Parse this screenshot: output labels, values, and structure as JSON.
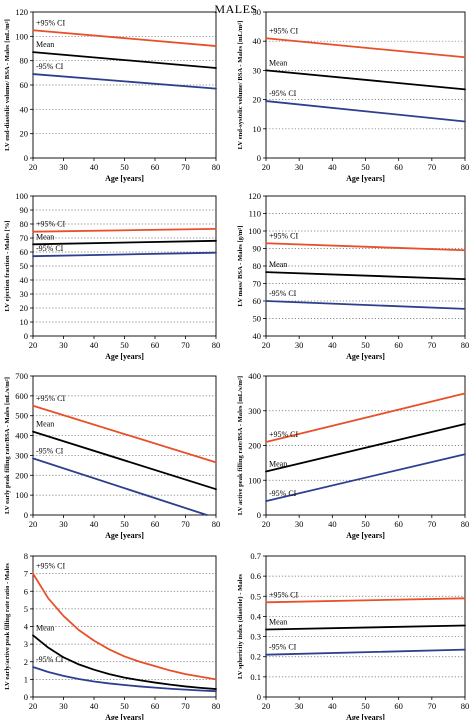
{
  "page": {
    "title": "MALES"
  },
  "colors": {
    "upper": "#e8502a",
    "mean": "#000000",
    "lower": "#2e3f8f",
    "grid": "#666666",
    "axis": "#000000"
  },
  "chart_data": [
    {
      "type": "line",
      "ylabel": "LV end-diastolic volume/ BSA - Males [mL/m²]",
      "xlabel": "Age [years]",
      "xlim": [
        20,
        80
      ],
      "xticks": [
        20,
        30,
        40,
        50,
        60,
        70,
        80
      ],
      "ylim": [
        0,
        120
      ],
      "yticks": [
        0,
        20,
        40,
        60,
        80,
        100,
        120
      ],
      "grid": "horizontal dotted",
      "series": [
        {
          "name": "+95% CI",
          "role": "upper",
          "x": [
            20,
            80
          ],
          "y": [
            105,
            92
          ]
        },
        {
          "name": "Mean",
          "role": "mean",
          "x": [
            20,
            80
          ],
          "y": [
            87,
            74
          ]
        },
        {
          "name": "-95% CI",
          "role": "lower",
          "x": [
            20,
            80
          ],
          "y": [
            69,
            57
          ]
        }
      ]
    },
    {
      "type": "line",
      "ylabel": "LV end-systolic volume/ BSA - Males [mL/m²]",
      "xlabel": "Age [years]",
      "xlim": [
        20,
        80
      ],
      "xticks": [
        20,
        30,
        40,
        50,
        60,
        70,
        80
      ],
      "ylim": [
        0,
        50
      ],
      "yticks": [
        0,
        10,
        20,
        30,
        40,
        50
      ],
      "grid": "horizontal dotted",
      "series": [
        {
          "name": "+95% CI",
          "role": "upper",
          "x": [
            20,
            80
          ],
          "y": [
            41,
            34.5
          ]
        },
        {
          "name": "Mean",
          "role": "mean",
          "x": [
            20,
            80
          ],
          "y": [
            30,
            23.5
          ]
        },
        {
          "name": "-95% CI",
          "role": "lower",
          "x": [
            20,
            80
          ],
          "y": [
            19.5,
            12.5
          ]
        }
      ]
    },
    {
      "type": "line",
      "ylabel": "LV ejection fraction - Males [%]",
      "xlabel": "Age [years]",
      "xlim": [
        20,
        80
      ],
      "xticks": [
        20,
        30,
        40,
        50,
        60,
        70,
        80
      ],
      "ylim": [
        0,
        100
      ],
      "yticks": [
        0,
        10,
        20,
        30,
        40,
        50,
        60,
        70,
        80,
        90,
        100
      ],
      "grid": "horizontal dotted",
      "series": [
        {
          "name": "+95% CI",
          "role": "upper",
          "x": [
            20,
            80
          ],
          "y": [
            74.5,
            76.5
          ]
        },
        {
          "name": "Mean",
          "role": "mean",
          "x": [
            20,
            80
          ],
          "y": [
            65.5,
            68
          ]
        },
        {
          "name": "-95% CI",
          "role": "lower",
          "x": [
            20,
            80
          ],
          "y": [
            57,
            59.5
          ]
        }
      ]
    },
    {
      "type": "line",
      "ylabel": "LV mass/ BSA - Males [g/m²]",
      "xlabel": "Age [years]",
      "xlim": [
        20,
        80
      ],
      "xticks": [
        20,
        30,
        40,
        50,
        60,
        70,
        80
      ],
      "ylim": [
        40,
        120
      ],
      "yticks": [
        40,
        50,
        60,
        70,
        80,
        90,
        100,
        110,
        120
      ],
      "grid": "horizontal dotted",
      "series": [
        {
          "name": "+95% CI",
          "role": "upper",
          "x": [
            20,
            80
          ],
          "y": [
            93,
            89
          ]
        },
        {
          "name": "Mean",
          "role": "mean",
          "x": [
            20,
            80
          ],
          "y": [
            76.5,
            72.5
          ]
        },
        {
          "name": "-95% CI",
          "role": "lower",
          "x": [
            20,
            80
          ],
          "y": [
            60,
            55.5
          ]
        }
      ]
    },
    {
      "type": "line",
      "ylabel": "LV early peak filling rate/BSA - Males [mL/s/m²]",
      "xlabel": "Age [years]",
      "xlim": [
        20,
        80
      ],
      "xticks": [
        20,
        30,
        40,
        50,
        60,
        70,
        80
      ],
      "ylim": [
        0,
        700
      ],
      "yticks": [
        0,
        100,
        200,
        300,
        400,
        500,
        600,
        700
      ],
      "grid": "horizontal dotted",
      "series": [
        {
          "name": "+95% CI",
          "role": "upper",
          "x": [
            20,
            80
          ],
          "y": [
            550,
            265
          ]
        },
        {
          "name": "Mean",
          "role": "mean",
          "x": [
            20,
            80
          ],
          "y": [
            420,
            130
          ]
        },
        {
          "name": "-95% CI",
          "role": "lower",
          "x": [
            20,
            77
          ],
          "y": [
            285,
            0
          ]
        }
      ]
    },
    {
      "type": "line",
      "ylabel": "LV active peak filling rate/BSA - Males [mL/s/m²]",
      "xlabel": "Age [years]",
      "xlim": [
        20,
        80
      ],
      "xticks": [
        20,
        30,
        40,
        50,
        60,
        70,
        80
      ],
      "ylim": [
        0,
        400
      ],
      "yticks": [
        0,
        100,
        200,
        300,
        400
      ],
      "grid": "horizontal dotted",
      "series": [
        {
          "name": "+95% CI",
          "role": "upper",
          "x": [
            20,
            80
          ],
          "y": [
            210,
            350
          ]
        },
        {
          "name": "Mean",
          "role": "mean",
          "x": [
            20,
            80
          ],
          "y": [
            125,
            262
          ]
        },
        {
          "name": "-95% CI",
          "role": "lower",
          "x": [
            20,
            80
          ],
          "y": [
            40,
            175
          ]
        }
      ]
    },
    {
      "type": "line",
      "ylabel": "LV early/active peak filling rate ratio - Males",
      "xlabel": "Age [years]",
      "xlim": [
        20,
        80
      ],
      "xticks": [
        20,
        30,
        40,
        50,
        60,
        70,
        80
      ],
      "ylim": [
        0,
        8
      ],
      "yticks": [
        0,
        1,
        2,
        3,
        4,
        5,
        6,
        7,
        8
      ],
      "grid": "horizontal dotted",
      "series": [
        {
          "name": "+95% CI",
          "role": "upper",
          "x": [
            20,
            25,
            30,
            35,
            40,
            45,
            50,
            55,
            60,
            65,
            70,
            75,
            80
          ],
          "y": [
            7.0,
            5.6,
            4.6,
            3.8,
            3.2,
            2.7,
            2.3,
            2.0,
            1.75,
            1.5,
            1.3,
            1.15,
            1.0
          ]
        },
        {
          "name": "Mean",
          "role": "mean",
          "x": [
            20,
            25,
            30,
            35,
            40,
            45,
            50,
            55,
            60,
            65,
            70,
            75,
            80
          ],
          "y": [
            3.5,
            2.8,
            2.25,
            1.85,
            1.55,
            1.3,
            1.1,
            0.95,
            0.82,
            0.7,
            0.6,
            0.52,
            0.45
          ]
        },
        {
          "name": "-95% CI",
          "role": "lower",
          "x": [
            20,
            25,
            30,
            35,
            40,
            45,
            50,
            55,
            60,
            65,
            70,
            75,
            80
          ],
          "y": [
            1.7,
            1.42,
            1.2,
            1.02,
            0.88,
            0.77,
            0.68,
            0.6,
            0.53,
            0.47,
            0.42,
            0.37,
            0.33
          ]
        }
      ]
    },
    {
      "type": "line",
      "ylabel": "LV sphericity index (diastole) - Males",
      "xlabel": "Age [years]",
      "xlim": [
        20,
        80
      ],
      "xticks": [
        20,
        30,
        40,
        50,
        60,
        70,
        80
      ],
      "ylim": [
        0,
        0.7
      ],
      "yticks": [
        0,
        0.1,
        0.2,
        0.3,
        0.4,
        0.5,
        0.6,
        0.7
      ],
      "grid": "horizontal dotted",
      "series": [
        {
          "name": "+95% CI",
          "role": "upper",
          "x": [
            20,
            80
          ],
          "y": [
            0.47,
            0.49
          ]
        },
        {
          "name": "Mean",
          "role": "mean",
          "x": [
            20,
            80
          ],
          "y": [
            0.335,
            0.355
          ]
        },
        {
          "name": "-95% CI",
          "role": "lower",
          "x": [
            20,
            80
          ],
          "y": [
            0.21,
            0.235
          ]
        }
      ]
    }
  ]
}
